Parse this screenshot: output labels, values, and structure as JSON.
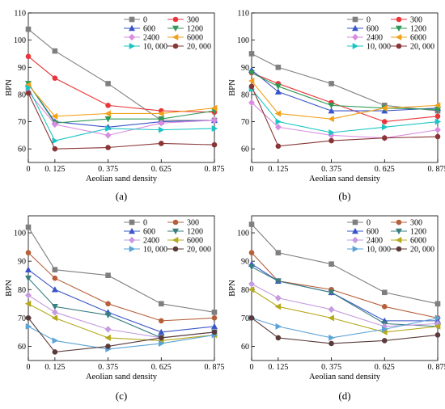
{
  "chart_data": [
    {
      "type": "line",
      "panel_label": "(a)",
      "xlabel": "Aeolian sand density",
      "ylabel": "BPN",
      "x": [
        0,
        0.125,
        0.375,
        0.625,
        0.875
      ],
      "x_tick_labels": [
        "0",
        "0. 125",
        "0. 375",
        "0. 625",
        "0. 875"
      ],
      "y_ticks": [
        60,
        70,
        80,
        90,
        100,
        110
      ],
      "ylim": [
        55,
        110
      ],
      "legend": "top-right, two columns",
      "series": [
        {
          "name": "0",
          "color": "#7f7f7f",
          "marker": "square",
          "values": [
            104,
            96,
            84,
            70.5,
            70.5
          ]
        },
        {
          "name": "300",
          "color": "#e8363a",
          "marker": "circle",
          "values": [
            94,
            86,
            76,
            74,
            73.5
          ]
        },
        {
          "name": "600",
          "color": "#3a55c8",
          "marker": "triangle-up",
          "values": [
            84,
            70,
            68,
            70,
            70.5
          ]
        },
        {
          "name": "1200",
          "color": "#2f9a57",
          "marker": "triangle-down",
          "values": [
            84,
            69.5,
            71,
            71,
            74
          ]
        },
        {
          "name": "2400",
          "color": "#d98ce0",
          "marker": "diamond",
          "values": [
            81,
            69,
            65,
            69.5,
            70.5
          ]
        },
        {
          "name": "6000",
          "color": "#f2a018",
          "marker": "triangle-left",
          "values": [
            83.5,
            72,
            73,
            73,
            75
          ]
        },
        {
          "name": "10, 000",
          "color": "#1cc5c5",
          "marker": "triangle-right",
          "values": [
            82.5,
            63,
            67.5,
            67,
            67.5
          ]
        },
        {
          "name": "20, 000",
          "color": "#8a3535",
          "marker": "circle",
          "values": [
            80.5,
            60,
            60.5,
            62,
            61.5
          ]
        }
      ]
    },
    {
      "type": "line",
      "panel_label": "(b)",
      "xlabel": "Aeolian sand density",
      "ylabel": "BPN",
      "x": [
        0,
        0.125,
        0.375,
        0.625,
        0.875
      ],
      "x_tick_labels": [
        "0",
        "0. 125",
        "0. 375",
        "0. 625",
        "0. 875"
      ],
      "y_ticks": [
        60,
        70,
        80,
        90,
        100,
        110
      ],
      "ylim": [
        55,
        110
      ],
      "legend": "top-right, two columns",
      "series": [
        {
          "name": "0",
          "color": "#7f7f7f",
          "marker": "square",
          "values": [
            95,
            90,
            84,
            76,
            74
          ]
        },
        {
          "name": "300",
          "color": "#e8363a",
          "marker": "circle",
          "values": [
            88,
            84,
            77,
            70,
            72
          ]
        },
        {
          "name": "600",
          "color": "#3a55c8",
          "marker": "triangle-up",
          "values": [
            89,
            81,
            74,
            74,
            75
          ]
        },
        {
          "name": "1200",
          "color": "#2f9a57",
          "marker": "triangle-down",
          "values": [
            88,
            83,
            76,
            75,
            74.5
          ]
        },
        {
          "name": "2400",
          "color": "#d98ce0",
          "marker": "diamond",
          "values": [
            77,
            68,
            65,
            64,
            67
          ]
        },
        {
          "name": "6000",
          "color": "#f2a018",
          "marker": "triangle-left",
          "values": [
            85,
            73,
            71,
            75,
            76
          ]
        },
        {
          "name": "10, 000",
          "color": "#1cc5c5",
          "marker": "triangle-right",
          "values": [
            82,
            70,
            66,
            68,
            70
          ]
        },
        {
          "name": "20, 000",
          "color": "#8a3535",
          "marker": "circle",
          "values": [
            83,
            61,
            63,
            64,
            64.5
          ]
        }
      ]
    },
    {
      "type": "line",
      "panel_label": "(c)",
      "xlabel": "Aeolian sand density",
      "ylabel": "BPN",
      "x": [
        0,
        0.125,
        0.375,
        0.625,
        0.875
      ],
      "x_tick_labels": [
        "0",
        "0. 125",
        "0. 375",
        "0. 625",
        "0. 875"
      ],
      "y_ticks": [
        60,
        70,
        80,
        90,
        100
      ],
      "ylim": [
        55,
        106
      ],
      "legend": "top-right, two columns",
      "series": [
        {
          "name": "0",
          "color": "#7f7f7f",
          "marker": "square",
          "values": [
            102,
            87,
            85,
            75,
            72
          ]
        },
        {
          "name": "300",
          "color": "#b5603a",
          "marker": "circle",
          "values": [
            93,
            84,
            75,
            69,
            70
          ]
        },
        {
          "name": "600",
          "color": "#3a55c8",
          "marker": "triangle-up",
          "values": [
            87,
            80,
            72,
            65,
            67
          ]
        },
        {
          "name": "1200",
          "color": "#3a7f7f",
          "marker": "triangle-down",
          "values": [
            84,
            74,
            71,
            63,
            65
          ]
        },
        {
          "name": "2400",
          "color": "#c59ae0",
          "marker": "diamond",
          "values": [
            78,
            72,
            66,
            63,
            65
          ]
        },
        {
          "name": "6000",
          "color": "#b5a81a",
          "marker": "triangle-left",
          "values": [
            75,
            70,
            63,
            62,
            64
          ]
        },
        {
          "name": "10, 000",
          "color": "#5ba3d6",
          "marker": "triangle-right",
          "values": [
            67,
            62,
            59,
            61,
            64
          ]
        },
        {
          "name": "20, 000",
          "color": "#5a3a3a",
          "marker": "circle",
          "values": [
            70,
            58,
            60,
            63,
            65
          ]
        }
      ]
    },
    {
      "type": "line",
      "panel_label": "(d)",
      "xlabel": "Aeolian sand density",
      "ylabel": "BPN",
      "x": [
        0,
        0.125,
        0.375,
        0.625,
        0.875
      ],
      "x_tick_labels": [
        "0",
        "0. 125",
        "0. 375",
        "0. 625",
        "0. 875"
      ],
      "y_ticks": [
        60,
        70,
        80,
        90,
        100
      ],
      "ylim": [
        55,
        106
      ],
      "legend": "top-right, two columns",
      "series": [
        {
          "name": "0",
          "color": "#7f7f7f",
          "marker": "square",
          "values": [
            103,
            93,
            89,
            79,
            75
          ]
        },
        {
          "name": "300",
          "color": "#b5603a",
          "marker": "circle",
          "values": [
            93,
            83,
            80,
            74,
            70
          ]
        },
        {
          "name": "600",
          "color": "#3a55c8",
          "marker": "triangle-up",
          "values": [
            89,
            83,
            79,
            69,
            69
          ]
        },
        {
          "name": "1200",
          "color": "#3a7f7f",
          "marker": "triangle-down",
          "values": [
            88,
            83,
            79,
            68,
            67
          ]
        },
        {
          "name": "2400",
          "color": "#c59ae0",
          "marker": "diamond",
          "values": [
            82,
            77,
            73,
            67,
            68
          ]
        },
        {
          "name": "6000",
          "color": "#b5a81a",
          "marker": "triangle-left",
          "values": [
            80,
            74,
            70,
            65,
            67
          ]
        },
        {
          "name": "10, 000",
          "color": "#5ba3d6",
          "marker": "triangle-right",
          "values": [
            70,
            67,
            63,
            66,
            70
          ]
        },
        {
          "name": "20, 000",
          "color": "#5a3a3a",
          "marker": "circle",
          "values": [
            70,
            63,
            61,
            62,
            64
          ]
        }
      ]
    }
  ]
}
